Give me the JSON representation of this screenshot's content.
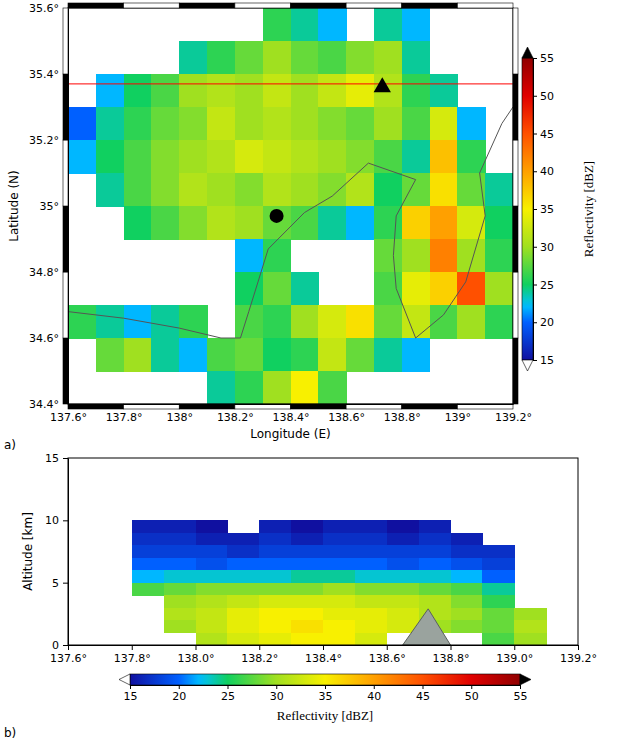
{
  "chart_data": [
    {
      "type": "heatmap",
      "panel_label": "a)",
      "xlabel": "Longitude (E)",
      "ylabel": "Latitude (N)",
      "xlim": [
        137.6,
        139.2
      ],
      "xticks": [
        {
          "value": 137.6,
          "label": "137.6°"
        },
        {
          "value": 137.8,
          "label": "137.8°"
        },
        {
          "value": 138.0,
          "label": "138°"
        },
        {
          "value": 138.2,
          "label": "138.2°"
        },
        {
          "value": 138.4,
          "label": "138.4°"
        },
        {
          "value": 138.6,
          "label": "138.6°"
        },
        {
          "value": 138.8,
          "label": "138.8°"
        },
        {
          "value": 139.0,
          "label": "139°"
        },
        {
          "value": 139.2,
          "label": "139.2°"
        }
      ],
      "ylim": [
        34.4,
        35.6
      ],
      "yticks": [
        {
          "value": 34.4,
          "label": "34.4°"
        },
        {
          "value": 34.6,
          "label": "34.6°"
        },
        {
          "value": 34.8,
          "label": "34.8°"
        },
        {
          "value": 35.0,
          "label": "35°"
        },
        {
          "value": 35.2,
          "label": "35.2°"
        },
        {
          "value": 35.4,
          "label": "35.4°"
        },
        {
          "value": 35.6,
          "label": "35.6°"
        }
      ],
      "x": [
        137.65,
        137.75,
        137.85,
        137.95,
        138.05,
        138.15,
        138.25,
        138.35,
        138.45,
        138.55,
        138.65,
        138.75,
        138.85,
        138.95,
        139.05,
        139.15
      ],
      "y": [
        35.55,
        35.45,
        35.35,
        35.25,
        35.15,
        35.05,
        34.95,
        34.85,
        34.75,
        34.65,
        34.55,
        34.45
      ],
      "values": [
        [
          null,
          null,
          null,
          null,
          null,
          null,
          null,
          26,
          24,
          22,
          null,
          24,
          22,
          null,
          null,
          null
        ],
        [
          null,
          null,
          null,
          null,
          24,
          26,
          28,
          30,
          28,
          27,
          29,
          30,
          24,
          null,
          null,
          null
        ],
        [
          null,
          22,
          25,
          27,
          30,
          31,
          30,
          32,
          30,
          32,
          34,
          31,
          26,
          24,
          null,
          null
        ],
        [
          20,
          24,
          26,
          28,
          29,
          32,
          30,
          31,
          30,
          29,
          28,
          30,
          27,
          33,
          22,
          null
        ],
        [
          22,
          25,
          27,
          29,
          30,
          31,
          33,
          32,
          31,
          30,
          29,
          27,
          24,
          38,
          26,
          null
        ],
        [
          null,
          24,
          27,
          29,
          31,
          30,
          29,
          31,
          30,
          29,
          31,
          25,
          28,
          36,
          28,
          24
        ],
        [
          null,
          null,
          25,
          27,
          29,
          31,
          30,
          28,
          27,
          24,
          22,
          26,
          37,
          40,
          33,
          25
        ],
        [
          null,
          null,
          null,
          null,
          null,
          null,
          22,
          26,
          null,
          null,
          null,
          28,
          30,
          42,
          30,
          26
        ],
        [
          null,
          null,
          null,
          null,
          null,
          null,
          25,
          28,
          24,
          null,
          null,
          27,
          34,
          37,
          45,
          30
        ],
        [
          26,
          24,
          22,
          24,
          26,
          null,
          27,
          26,
          30,
          33,
          36,
          28,
          32,
          27,
          30,
          26
        ],
        [
          null,
          28,
          30,
          24,
          22,
          27,
          28,
          25,
          26,
          32,
          28,
          24,
          22,
          null,
          null,
          null
        ],
        [
          null,
          null,
          null,
          null,
          null,
          24,
          26,
          30,
          35,
          27,
          null,
          null,
          null,
          null,
          null,
          null
        ]
      ],
      "colorbar_label": "Reflectivity [dBZ]",
      "clim": [
        15,
        55
      ],
      "cticks": [
        15,
        20,
        25,
        30,
        35,
        40,
        45,
        50,
        55
      ],
      "series": [
        {
          "type": "line",
          "line_style": "solid",
          "color": "#555555",
          "x": [
            137.6,
            137.8,
            138.0,
            138.15,
            138.22,
            138.25,
            138.32,
            138.45,
            138.55,
            138.68,
            138.85,
            138.78,
            138.77,
            138.78,
            138.85,
            138.95,
            139.03,
            139.1,
            139.08,
            139.16,
            139.2
          ],
          "y": [
            34.68,
            34.66,
            34.63,
            34.6,
            34.6,
            34.68,
            34.87,
            34.98,
            35.03,
            35.13,
            35.08,
            34.97,
            34.85,
            34.75,
            34.6,
            34.67,
            34.77,
            34.97,
            35.1,
            35.25,
            35.3
          ]
        },
        {
          "type": "line",
          "line_style": "solid",
          "color": "#ff0000",
          "x": [
            137.6,
            139.2
          ],
          "y": [
            35.37,
            35.37
          ]
        },
        {
          "type": "scatter",
          "marker": "circle",
          "color": "#000000",
          "x": [
            138.35
          ],
          "y": [
            34.97
          ]
        },
        {
          "type": "scatter",
          "marker": "triangle",
          "color": "#000000",
          "x": [
            138.73
          ],
          "y": [
            35.36
          ]
        }
      ]
    },
    {
      "type": "heatmap",
      "panel_label": "b)",
      "ylabel": "Altitude [km]",
      "xlim": [
        137.6,
        139.2
      ],
      "xticks": [
        {
          "value": 137.6,
          "label": "137.6°"
        },
        {
          "value": 137.8,
          "label": "137.8°"
        },
        {
          "value": 138.0,
          "label": "138.0°"
        },
        {
          "value": 138.2,
          "label": "138.2°"
        },
        {
          "value": 138.4,
          "label": "138.4°"
        },
        {
          "value": 138.6,
          "label": "138.6°"
        },
        {
          "value": 138.8,
          "label": "138.8°"
        },
        {
          "value": 139.0,
          "label": "139.0°"
        },
        {
          "value": 139.2,
          "label": "139.2°"
        }
      ],
      "ylim": [
        0,
        15
      ],
      "yticks": [
        0,
        5,
        10,
        15
      ],
      "x": [
        137.65,
        137.75,
        137.85,
        137.95,
        138.05,
        138.15,
        138.25,
        138.35,
        138.45,
        138.55,
        138.65,
        138.75,
        138.85,
        138.95,
        139.05,
        139.15
      ],
      "y": [
        9.5,
        8.5,
        7.5,
        6.5,
        5.5,
        4.5,
        3.5,
        2.5,
        1.5,
        0.5
      ],
      "values": [
        [
          null,
          null,
          16,
          16,
          15,
          null,
          16,
          15,
          16,
          16,
          15,
          16,
          null,
          null,
          null,
          null
        ],
        [
          null,
          null,
          17,
          17,
          16,
          16,
          17,
          16,
          17,
          17,
          16,
          17,
          16,
          null,
          null,
          null
        ],
        [
          null,
          null,
          18,
          18,
          18,
          17,
          18,
          18,
          18,
          18,
          18,
          18,
          17,
          17,
          null,
          null
        ],
        [
          null,
          null,
          20,
          20,
          19,
          20,
          20,
          20,
          20,
          20,
          19,
          20,
          19,
          18,
          null,
          null
        ],
        [
          null,
          null,
          22,
          23,
          23,
          23,
          23,
          24,
          24,
          23,
          23,
          23,
          22,
          20,
          null,
          null
        ],
        [
          null,
          null,
          27,
          28,
          29,
          29,
          29,
          29,
          30,
          29,
          29,
          28,
          27,
          24,
          null,
          null
        ],
        [
          null,
          null,
          null,
          30,
          31,
          32,
          33,
          33,
          33,
          32,
          32,
          31,
          29,
          26,
          null,
          null
        ],
        [
          null,
          null,
          null,
          31,
          32,
          34,
          35,
          35,
          34,
          34,
          33,
          31,
          30,
          28,
          30,
          null
        ],
        [
          null,
          null,
          null,
          30,
          32,
          34,
          35,
          36,
          35,
          34,
          33,
          30,
          29,
          28,
          31,
          null
        ],
        [
          null,
          null,
          null,
          null,
          31,
          33,
          34,
          35,
          35,
          33,
          null,
          null,
          null,
          27,
          30,
          null
        ]
      ],
      "colorbar_label": "Reflectivity [dBZ]",
      "clim": [
        15,
        55
      ],
      "cticks": [
        15,
        20,
        25,
        30,
        35,
        40,
        45,
        50,
        55
      ],
      "series": [
        {
          "type": "area",
          "color": "#9aa39e",
          "x": [
            138.65,
            138.73,
            138.8
          ],
          "y": [
            0,
            2.9,
            0
          ]
        }
      ]
    }
  ]
}
